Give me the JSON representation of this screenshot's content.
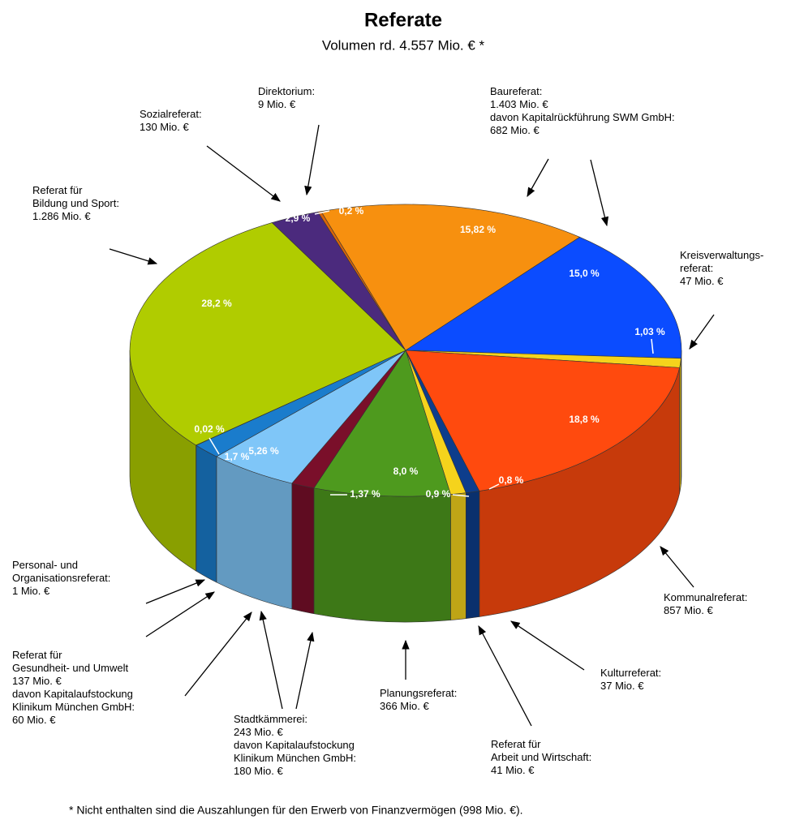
{
  "chart_data": {
    "type": "pie3d",
    "title": "Referate",
    "subtitle": "Volumen rd. 4.557 Mio. € *",
    "footnote": "* Nicht enthalten sind die Auszahlungen für den Erwerb von Finanzvermögen (998 Mio. €).",
    "values": [
      2.9,
      0.2,
      15.82,
      15.0,
      1.03,
      18.8,
      0.8,
      0.9,
      8.0,
      1.37,
      5.26,
      1.7,
      0.02,
      28.2
    ],
    "value_labels": [
      "2,9 %",
      "0,2 %",
      "15,82 %",
      "15,0 %",
      "1,03 %",
      "18,8 %",
      "0,8 %",
      "0,9 %",
      "8,0 %",
      "1,37 %",
      "5,26 %",
      "1,7 %",
      "0,02 %",
      "28,2 %"
    ],
    "colors": [
      "#4b2a7d",
      "#d9650a",
      "#f7900f",
      "#0b4cff",
      "#f5d31c",
      "#ff4a0e",
      "#0d3d8c",
      "#f5d31c",
      "#4e9a1e",
      "#7a0f2a",
      "#7fc6f8",
      "#1a7ccc",
      "#1f5fa8",
      "#b0cc00"
    ],
    "annotations": [
      {
        "text": [
          "Sozialreferat:",
          "130 Mio. €"
        ]
      },
      {
        "text": [
          "Direktorium:",
          "9 Mio. €"
        ]
      },
      {
        "text": [
          "Baureferat:",
          "1.403 Mio. €",
          "davon Kapitalrückführung SWM GmbH:",
          "682 Mio. €"
        ]
      },
      {
        "text": [
          "Kreisverwaltungs-",
          "referat:",
          "47 Mio. €"
        ]
      },
      {
        "text": [
          "Referat für",
          "Bildung und Sport:",
          "1.286 Mio. €"
        ]
      },
      {
        "text": [
          "Kommunalreferat:",
          "857 Mio. €"
        ]
      },
      {
        "text": [
          "Kulturreferat:",
          "37 Mio. €"
        ]
      },
      {
        "text": [
          "Referat für",
          "Arbeit und Wirtschaft:",
          "41 Mio. €"
        ]
      },
      {
        "text": [
          "Planungsreferat:",
          "366 Mio. €"
        ]
      },
      {
        "text": [
          "Stadtkämmerei:",
          "243 Mio. €",
          "davon Kapitalaufstockung",
          "Klinikum München GmbH:",
          "180 Mio. €"
        ]
      },
      {
        "text": [
          "Referat für",
          "Gesundheit- und Umwelt",
          "137 Mio. €",
          "davon Kapitalaufstockung",
          "Klinikum München GmbH:",
          "60 Mio. €"
        ]
      },
      {
        "text": [
          "Personal- und",
          "Organisationsreferat:",
          "1 Mio. €"
        ]
      }
    ]
  }
}
